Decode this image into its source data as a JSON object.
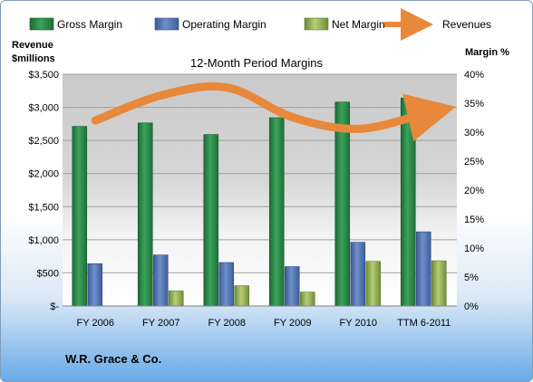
{
  "company": "W.R. Grace & Co.",
  "chart_data": {
    "type": "bar",
    "title": "12-Month Period Margins",
    "left_axis_label": [
      "Revenue",
      "$millions"
    ],
    "right_axis_label": "Margin %",
    "categories": [
      "FY 2006",
      "FY 2007",
      "FY 2008",
      "FY 2009",
      "FY 2010",
      "TTM 6-2011"
    ],
    "left_ticks": [
      "$-",
      "$500",
      "$1,000",
      "$1,500",
      "$2,000",
      "$2,500",
      "$3,000",
      "$3,500"
    ],
    "right_ticks": [
      "0%",
      "5%",
      "10%",
      "15%",
      "20%",
      "25%",
      "30%",
      "35%",
      "40%"
    ],
    "left_range": [
      0,
      3500
    ],
    "right_range": [
      0,
      40
    ],
    "series": [
      {
        "name": "Gross Margin",
        "axis": "right",
        "values": [
          31.0,
          31.6,
          29.6,
          32.5,
          35.2,
          35.9
        ],
        "color": "#2e8b4a"
      },
      {
        "name": "Operating Margin",
        "axis": "right",
        "values": [
          7.3,
          8.8,
          7.5,
          6.8,
          11.0,
          12.8
        ],
        "color": "#5578b8"
      },
      {
        "name": "Net Margin",
        "axis": "right",
        "values": [
          0.0,
          2.6,
          3.5,
          2.4,
          7.7,
          7.8
        ],
        "color": "#9bbb59"
      },
      {
        "name": "Revenues",
        "axis": "left",
        "type": "line",
        "values": [
          2800,
          3180,
          3300,
          2850,
          2675,
          2900
        ],
        "color": "#e8883a"
      }
    ],
    "legend_position": "top",
    "grid": true
  }
}
